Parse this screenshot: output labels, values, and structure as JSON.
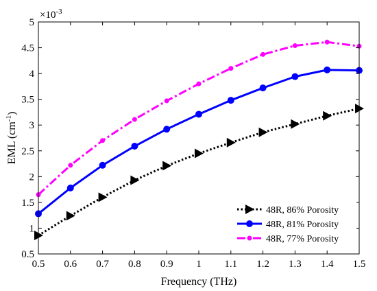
{
  "chart_data": {
    "type": "line",
    "xlabel": "Frequency (THz)",
    "ylabel": "EML (cm",
    "ylabel_exponent": "-1",
    "ylabel_suffix": ")",
    "y_multiplier": "×10",
    "y_multiplier_exponent": "-3",
    "xlim": [
      0.5,
      1.5
    ],
    "ylim": [
      0.5,
      5
    ],
    "x_ticks": [
      0.5,
      0.6,
      0.7,
      0.8,
      0.9,
      1,
      1.1,
      1.2,
      1.3,
      1.4,
      1.5
    ],
    "x_tick_labels": [
      "0.5",
      "0.6",
      "0.7",
      "0.8",
      "0.9",
      "1",
      "1.1",
      "1.2",
      "1.3",
      "1.4",
      "1.5"
    ],
    "y_ticks": [
      0.5,
      1,
      1.5,
      2,
      2.5,
      3,
      3.5,
      4,
      4.5,
      5
    ],
    "y_tick_labels": [
      "0.5",
      "1",
      "1.5",
      "2",
      "2.5",
      "3",
      "3.5",
      "4",
      "4.5",
      "5"
    ],
    "x": [
      0.5,
      0.6,
      0.7,
      0.8,
      0.9,
      1.0,
      1.1,
      1.2,
      1.3,
      1.4,
      1.5
    ],
    "grid": false,
    "legend_position": "bottom-right",
    "series": [
      {
        "name": "48R, 86% Porosity",
        "values": [
          0.86,
          1.24,
          1.6,
          1.93,
          2.21,
          2.45,
          2.66,
          2.86,
          3.02,
          3.18,
          3.32
        ],
        "color": "#000000",
        "line_style": "dotted",
        "marker": "triangle-right"
      },
      {
        "name": "48R, 81% Porosity",
        "values": [
          1.28,
          1.78,
          2.22,
          2.59,
          2.92,
          3.21,
          3.48,
          3.72,
          3.94,
          4.07,
          4.06
        ],
        "color": "#0000ff",
        "line_style": "solid",
        "marker": "circle"
      },
      {
        "name": "48R, 77% Porosity",
        "values": [
          1.65,
          2.22,
          2.7,
          3.11,
          3.47,
          3.8,
          4.1,
          4.37,
          4.54,
          4.61,
          4.53
        ],
        "color": "#ff00ff",
        "line_style": "dash-dot",
        "marker": "small-dot"
      }
    ]
  }
}
